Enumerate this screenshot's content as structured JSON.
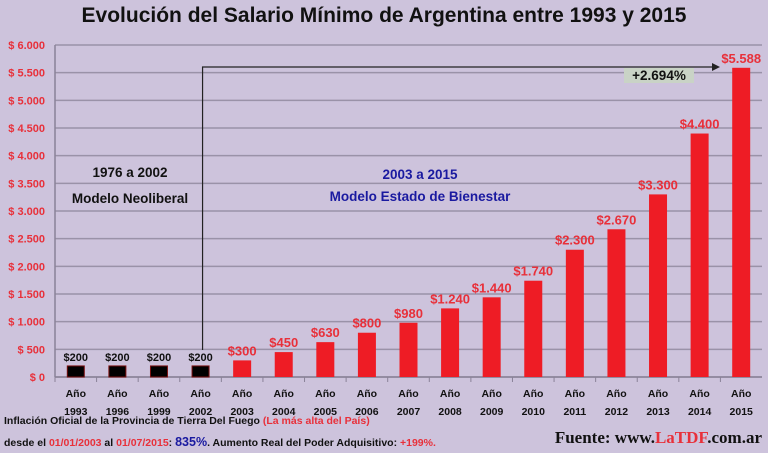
{
  "chart_data": {
    "type": "bar",
    "title": "Evolución del Salario Mínimo de Argentina entre 1993 y 2015",
    "categories": [
      "Año 1993",
      "Año 1996",
      "Año 1999",
      "Año 2002",
      "Año 2003",
      "Año 2004",
      "Año 2005",
      "Año 2006",
      "Año 2007",
      "Año 2008",
      "Año 2009",
      "Año 2010",
      "Año 2011",
      "Año 2012",
      "Año 2013",
      "Año 2014",
      "Año 2015"
    ],
    "values": [
      200,
      200,
      200,
      200,
      300,
      450,
      630,
      800,
      980,
      1240,
      1440,
      1740,
      2300,
      2670,
      3300,
      4400,
      5588
    ],
    "data_labels": [
      "$200",
      "$200",
      "$200",
      "$200",
      "$300",
      "$450",
      "$630",
      "$800",
      "$980",
      "$1.240",
      "$1.440",
      "$1.740",
      "$2.300",
      "$2.670",
      "$3.300",
      "$4.400",
      "$5.588"
    ],
    "ylim": [
      0,
      6000
    ],
    "yticks": [
      0,
      500,
      1000,
      1500,
      2000,
      2500,
      3000,
      3500,
      4000,
      4500,
      5000,
      5500,
      6000
    ],
    "ytick_labels": [
      "$ 0",
      "$ 500",
      "$ 1.000",
      "$ 1.500",
      "$ 2.000",
      "$ 2.500",
      "$ 3.000",
      "$ 3.500",
      "$ 4.000",
      "$ 4.500",
      "$ 5.000",
      "$ 5.500",
      "$ 6.000"
    ],
    "grid": true,
    "colors": {
      "neoliberal": "#000000",
      "bienestar": "#ee1c25",
      "axis_labels": "#e8303a",
      "grid": "#9a92a8"
    },
    "annotations": {
      "period1_line1": "1976 a 2002",
      "period1_line2": "Modelo Neoliberal",
      "period2_line1": "2003 a 2015",
      "period2_line2": "Modelo Estado de Bienestar",
      "growth": "+2.694%"
    }
  },
  "footer": {
    "line1_a": "Inflación Oficial de la Provincia de Tierra Del Fuego ",
    "line1_b": "(La más alta del País)",
    "line2_a": "desde el ",
    "line2_b": "01/01/2003",
    "line2_c": " al ",
    "line2_d": "01/07/2015",
    "line2_e": ": ",
    "line2_f": "835%",
    "line2_g": ". Aumento Real del Poder Adquisitivo: ",
    "line2_h": "+199%.",
    "source_a": "Fuente: www.",
    "source_b": "LaTDF",
    "source_c": ".com.ar"
  }
}
